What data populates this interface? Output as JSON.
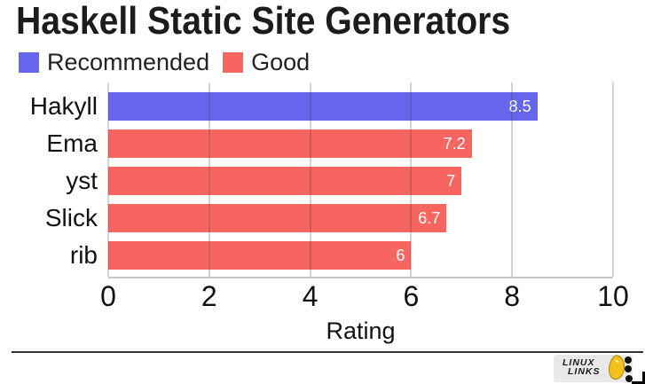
{
  "chart_data": {
    "type": "bar",
    "orientation": "horizontal",
    "title": "Haskell Static Site Generators",
    "xlabel": "Rating",
    "xlim": [
      0,
      10
    ],
    "xticks": [
      0,
      2,
      4,
      6,
      8,
      10
    ],
    "grid": true,
    "legend_position": "top-left",
    "legend": [
      {
        "label": "Recommended",
        "color": "#6566EB"
      },
      {
        "label": "Good",
        "color": "#F6655F"
      }
    ],
    "bars": [
      {
        "label": "Hakyll",
        "value": 8.5,
        "value_label": "8.5",
        "category": "Recommended"
      },
      {
        "label": "Ema",
        "value": 7.2,
        "value_label": "7.2",
        "category": "Good"
      },
      {
        "label": "yst",
        "value": 7,
        "value_label": "7",
        "category": "Good"
      },
      {
        "label": "Slick",
        "value": 6.7,
        "value_label": "6.7",
        "category": "Good"
      },
      {
        "label": "rib",
        "value": 6,
        "value_label": "6",
        "category": "Good"
      }
    ]
  },
  "footer": {
    "logo": {
      "line1": "LINUX",
      "line2": "LINKS"
    }
  }
}
